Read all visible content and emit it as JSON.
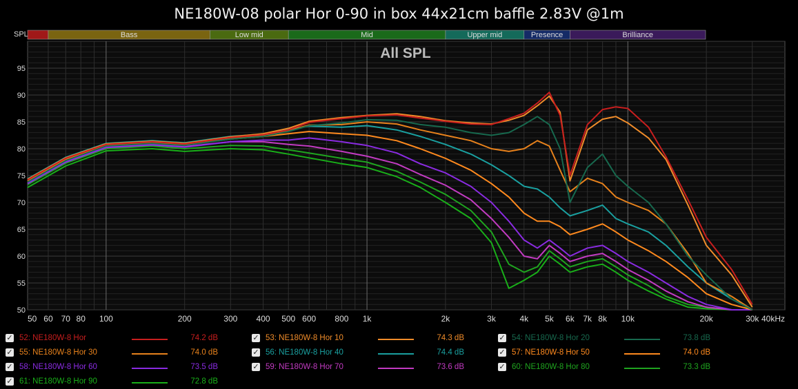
{
  "chart_data": {
    "type": "line",
    "title": "NE180W-08 polar Hor 0-90 in box 44x21cm baffle 2.83V @1m",
    "subtitle": "All SPL",
    "ylabel": "SPL",
    "xscale": "log",
    "xlim": [
      50,
      40000
    ],
    "ylim": [
      50,
      100
    ],
    "grid": true,
    "x_ticks": [
      {
        "v": 50,
        "label": "50"
      },
      {
        "v": 60,
        "label": "60"
      },
      {
        "v": 70,
        "label": "70"
      },
      {
        "v": 80,
        "label": "80"
      },
      {
        "v": 100,
        "label": "100"
      },
      {
        "v": 200,
        "label": "200"
      },
      {
        "v": 300,
        "label": "300"
      },
      {
        "v": 400,
        "label": "400"
      },
      {
        "v": 500,
        "label": "500"
      },
      {
        "v": 600,
        "label": "600"
      },
      {
        "v": 800,
        "label": "800"
      },
      {
        "v": 1000,
        "label": "1k"
      },
      {
        "v": 2000,
        "label": "2k"
      },
      {
        "v": 3000,
        "label": "3k"
      },
      {
        "v": 4000,
        "label": "4k"
      },
      {
        "v": 5000,
        "label": "5k"
      },
      {
        "v": 6000,
        "label": "6k"
      },
      {
        "v": 7000,
        "label": "7k"
      },
      {
        "v": 8000,
        "label": "8k"
      },
      {
        "v": 10000,
        "label": "10k"
      },
      {
        "v": 20000,
        "label": "20k"
      },
      {
        "v": 30000,
        "label": "30k"
      },
      {
        "v": 40000,
        "label": "40kHz"
      }
    ],
    "y_ticks": [
      {
        "v": 55,
        "label": "55"
      },
      {
        "v": 60,
        "label": "60"
      },
      {
        "v": 65,
        "label": "65"
      },
      {
        "v": 70,
        "label": "70"
      },
      {
        "v": 75,
        "label": "75"
      },
      {
        "v": 80,
        "label": "80"
      },
      {
        "v": 85,
        "label": "85"
      },
      {
        "v": 90,
        "label": "90"
      },
      {
        "v": 95,
        "label": "95"
      },
      {
        "v": 50,
        "label": "50"
      }
    ],
    "bands": [
      {
        "label": "",
        "from": 50,
        "to": 60,
        "color": "#a01818"
      },
      {
        "label": "Bass",
        "from": 60,
        "to": 250,
        "color": "#7a6410"
      },
      {
        "label": "Low mid",
        "from": 250,
        "to": 500,
        "color": "#4a6a10"
      },
      {
        "label": "Mid",
        "from": 500,
        "to": 2000,
        "color": "#1a6a1a"
      },
      {
        "label": "Upper mid",
        "from": 2000,
        "to": 4000,
        "color": "#146a5a"
      },
      {
        "label": "Presence",
        "from": 4000,
        "to": 6000,
        "color": "#142a66"
      },
      {
        "label": "Brilliance",
        "from": 6000,
        "to": 20000,
        "color": "#3a1a5a"
      }
    ],
    "x": [
      50,
      70,
      100,
      150,
      200,
      300,
      400,
      500,
      600,
      800,
      1000,
      1300,
      1600,
      2000,
      2500,
      3000,
      3500,
      4000,
      4500,
      5000,
      5500,
      6000,
      7000,
      8000,
      9000,
      10000,
      12000,
      14000,
      17000,
      20000,
      25000,
      30000
    ],
    "series": [
      {
        "name": "52: NE180W-8 Hor",
        "color": "#c81e1e",
        "avg": "74.2 dB",
        "y": [
          74.2,
          78.2,
          80.8,
          81.3,
          80.9,
          82.1,
          82.6,
          83.5,
          84.9,
          85.6,
          86.1,
          86.3,
          85.7,
          85.1,
          84.6,
          84.5,
          85.6,
          86.6,
          88.5,
          90.5,
          86.2,
          75,
          84.5,
          87.3,
          87.8,
          87.5,
          84,
          78.5,
          70.5,
          63.5,
          57.5,
          51
        ]
      },
      {
        "name": "53: NE180W-8 Hor 10",
        "color": "#f08c2a",
        "avg": "74.3 dB",
        "y": [
          74.3,
          78.3,
          80.9,
          81.4,
          81,
          82.2,
          82.8,
          83.8,
          85.1,
          85.8,
          86.2,
          86.5,
          86,
          85.2,
          84.8,
          84.6,
          85.3,
          86.2,
          88,
          89.8,
          86.8,
          74,
          83.5,
          85.5,
          86,
          84.8,
          82,
          78,
          69.5,
          62,
          56.5,
          50.5
        ]
      },
      {
        "name": "54: NE180W-8 Hor 20",
        "color": "#17694e",
        "avg": "73.8 dB",
        "y": [
          73.8,
          77.8,
          80.5,
          81,
          80.6,
          81.8,
          82.3,
          83.2,
          84.3,
          84.8,
          85.4,
          85.3,
          84.5,
          84,
          83,
          82.5,
          83,
          84.5,
          86,
          84.5,
          80,
          70,
          76.5,
          79,
          75,
          73,
          70,
          66,
          60,
          56.5,
          52,
          50
        ]
      },
      {
        "name": "55: NE180W-8 Hor 30",
        "color": "#e8821c",
        "avg": "74.0 dB",
        "y": [
          74,
          78,
          80.7,
          81.2,
          80.8,
          82,
          82.4,
          83.4,
          84.4,
          84.5,
          85,
          84.6,
          83.5,
          82.5,
          81.5,
          80,
          79.5,
          80,
          81.5,
          80.5,
          76,
          72,
          74.5,
          73.5,
          71,
          70,
          68.5,
          66,
          60.5,
          55,
          52.5,
          50
        ]
      },
      {
        "name": "56: NE180W-8 Hor 40",
        "color": "#1aa0a0",
        "avg": "74.4 dB",
        "y": [
          74.4,
          78.4,
          81,
          81.5,
          81.1,
          82.3,
          82.7,
          83.6,
          84.2,
          84,
          84.3,
          83.5,
          82.3,
          80.8,
          79,
          77,
          75,
          73,
          72.5,
          71,
          69,
          67.5,
          68.5,
          69.5,
          67,
          66,
          64.5,
          62,
          58,
          55,
          52,
          50
        ]
      },
      {
        "name": "57: NE180W-8 Hor 50",
        "color": "#ff8a1e",
        "avg": "74.0 dB",
        "y": [
          74,
          78,
          80.6,
          81.1,
          80.7,
          81.8,
          82.3,
          82.8,
          83.2,
          82.8,
          82.5,
          81.5,
          80,
          78.2,
          76,
          73.5,
          71,
          68,
          66.5,
          66.5,
          65.5,
          64,
          65,
          66,
          64.5,
          63,
          61,
          59,
          56,
          53,
          51,
          50
        ]
      },
      {
        "name": "58: NE180W-8 Hor 60",
        "color": "#8a2be2",
        "avg": "73.5 dB",
        "y": [
          73.5,
          77.5,
          80.2,
          80.7,
          80.3,
          81.3,
          81.6,
          81.6,
          82,
          81.3,
          80.6,
          79.2,
          77.2,
          75.5,
          73,
          70,
          66.5,
          63,
          61.5,
          63,
          61.5,
          60,
          61.5,
          62,
          60.5,
          59,
          57,
          55,
          52.5,
          51,
          50,
          50
        ]
      },
      {
        "name": "59: NE180W-8 Hor 70",
        "color": "#c23bc2",
        "avg": "73.6 dB",
        "y": [
          73.6,
          77.6,
          80.3,
          80.8,
          80.4,
          81.3,
          81.3,
          80.8,
          80.5,
          79.5,
          78.6,
          77.2,
          75.2,
          73.2,
          70.5,
          67,
          63.5,
          60,
          59.5,
          62,
          60.5,
          59,
          60,
          60.5,
          59,
          57.5,
          55.5,
          53.5,
          51.5,
          50.5,
          50,
          50
        ]
      },
      {
        "name": "60: NE180W-8 Hor 80",
        "color": "#1fa51f",
        "avg": "73.3 dB",
        "y": [
          73.3,
          77.3,
          80,
          80.5,
          80,
          80.6,
          80.5,
          79.8,
          79.2,
          78.2,
          77.5,
          75.8,
          73.8,
          71.5,
          68.5,
          64.5,
          58.5,
          57,
          58,
          61,
          59.5,
          58,
          59,
          59.5,
          58,
          56.5,
          54.5,
          52.5,
          51,
          50.5,
          50,
          50
        ]
      },
      {
        "name": "61: NE180W-8 Hor 90",
        "color": "#19b019",
        "avg": "72.8 dB",
        "y": [
          72.8,
          76.8,
          79.6,
          80,
          79.5,
          80,
          79.8,
          79,
          78.3,
          77.2,
          76.5,
          74.8,
          72.8,
          70,
          67,
          62.5,
          54,
          55.5,
          57,
          60,
          58.5,
          57,
          58,
          58.5,
          57,
          55.5,
          53.5,
          52,
          50.5,
          50.2,
          50,
          50
        ]
      }
    ]
  },
  "legend": {
    "items": [
      {
        "name": "52: NE180W-8 Hor",
        "value": "74.2 dB",
        "color": "#c81e1e",
        "checked": "✓"
      },
      {
        "name": "53: NE180W-8 Hor 10",
        "value": "74.3 dB",
        "color": "#f08c2a",
        "checked": "✓"
      },
      {
        "name": "54: NE180W-8 Hor 20",
        "value": "73.8 dB",
        "color": "#17694e",
        "checked": "✓"
      },
      {
        "name": "55: NE180W-8 Hor 30",
        "value": "74.0 dB",
        "color": "#e8821c",
        "checked": "✓"
      },
      {
        "name": "56: NE180W-8 Hor 40",
        "value": "74.4 dB",
        "color": "#1aa0a0",
        "checked": "✓"
      },
      {
        "name": "57: NE180W-8 Hor 50",
        "value": "74.0 dB",
        "color": "#ff8a1e",
        "checked": "✓"
      },
      {
        "name": "58: NE180W-8 Hor 60",
        "value": "73.5 dB",
        "color": "#8a2be2",
        "checked": "✓"
      },
      {
        "name": "59: NE180W-8 Hor 70",
        "value": "73.6 dB",
        "color": "#c23bc2",
        "checked": "✓"
      },
      {
        "name": "60: NE180W-8 Hor 80",
        "value": "73.3 dB",
        "color": "#1fa51f",
        "checked": "✓"
      },
      {
        "name": "61: NE180W-8 Hor 90",
        "value": "72.8 dB",
        "color": "#19b019",
        "checked": "✓"
      }
    ]
  }
}
